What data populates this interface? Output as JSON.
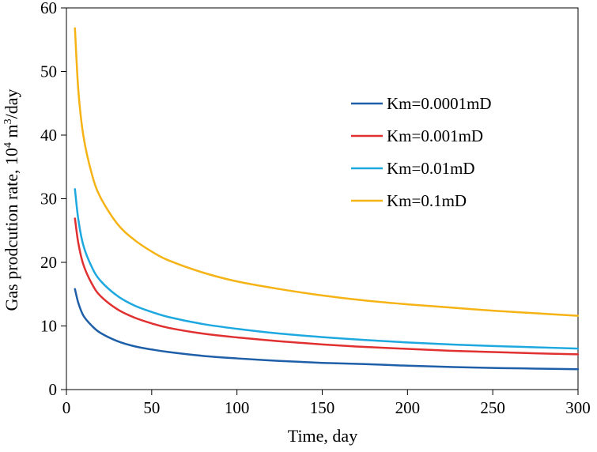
{
  "chart_data": {
    "type": "line",
    "xlabel": "Time, day",
    "ylabel_main": "Gas prodcution rate, 10",
    "ylabel_sup": "4",
    "ylabel_mid": " m",
    "ylabel_sup2": "3",
    "ylabel_end": "/day",
    "xlim": [
      0,
      300
    ],
    "ylim": [
      0,
      60
    ],
    "xticks": [
      0,
      50,
      100,
      150,
      200,
      250,
      300
    ],
    "yticks": [
      0,
      10,
      20,
      30,
      40,
      50,
      60
    ],
    "grid": false,
    "legend_position": "upper-right",
    "x": [
      5,
      7,
      10,
      15,
      20,
      30,
      40,
      50,
      60,
      80,
      100,
      125,
      150,
      175,
      200,
      225,
      250,
      275,
      300
    ],
    "series": [
      {
        "name": "Km=0.0001mD",
        "color": "#1f5fa8",
        "values": [
          15.8,
          13.6,
          11.6,
          10.0,
          8.9,
          7.6,
          6.8,
          6.3,
          5.9,
          5.3,
          4.9,
          4.5,
          4.2,
          4.0,
          3.75,
          3.55,
          3.4,
          3.3,
          3.2
        ]
      },
      {
        "name": "Km=0.001mD",
        "color": "#e03030",
        "values": [
          26.9,
          23.0,
          19.6,
          16.6,
          14.7,
          12.6,
          11.3,
          10.4,
          9.7,
          8.8,
          8.2,
          7.6,
          7.1,
          6.7,
          6.4,
          6.1,
          5.9,
          5.7,
          5.55
        ]
      },
      {
        "name": "Km=0.01mD",
        "color": "#1ea8e0",
        "values": [
          31.5,
          26.7,
          22.6,
          19.2,
          17.1,
          14.7,
          13.2,
          12.2,
          11.4,
          10.3,
          9.55,
          8.8,
          8.25,
          7.8,
          7.4,
          7.1,
          6.85,
          6.65,
          6.45
        ]
      },
      {
        "name": "Km=0.1mD",
        "color": "#f5b316",
        "values": [
          56.8,
          47.0,
          39.8,
          33.8,
          30.2,
          26.0,
          23.5,
          21.7,
          20.3,
          18.4,
          17.0,
          15.8,
          14.8,
          14.0,
          13.4,
          12.9,
          12.4,
          12.0,
          11.6
        ]
      }
    ]
  }
}
